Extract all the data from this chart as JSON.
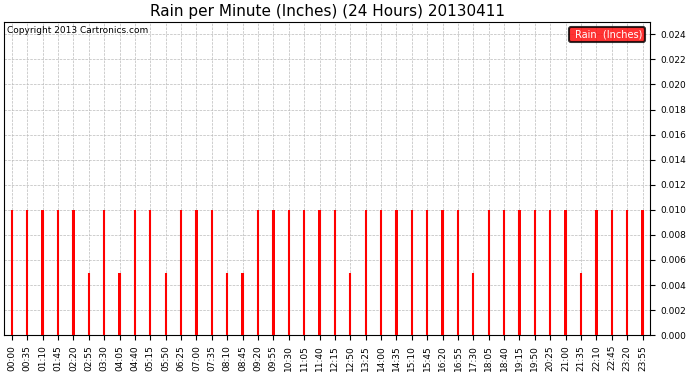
{
  "title": "Rain per Minute (Inches) (24 Hours) 20130411",
  "copyright": "Copyright 2013 Cartronics.com",
  "legend_label": "Rain  (Inches)",
  "ylim": [
    0,
    0.025
  ],
  "yticks": [
    0.0,
    0.002,
    0.004,
    0.006,
    0.008,
    0.01,
    0.012,
    0.014,
    0.016,
    0.018,
    0.02,
    0.022,
    0.024
  ],
  "bar_color": "#ff0000",
  "background_color": "#ffffff",
  "grid_color": "#bbbbbb",
  "title_fontsize": 11,
  "tick_fontsize": 6.5,
  "x_labels": [
    "00:00",
    "00:35",
    "01:10",
    "01:45",
    "02:20",
    "02:55",
    "03:30",
    "04:05",
    "04:40",
    "05:15",
    "05:50",
    "06:25",
    "07:00",
    "07:35",
    "08:10",
    "08:45",
    "09:20",
    "09:55",
    "10:30",
    "11:05",
    "11:40",
    "12:15",
    "12:50",
    "13:25",
    "14:00",
    "14:35",
    "15:10",
    "15:45",
    "16:20",
    "16:55",
    "17:30",
    "18:05",
    "18:40",
    "19:15",
    "19:50",
    "20:25",
    "21:00",
    "21:35",
    "22:10",
    "22:45",
    "23:20",
    "23:55"
  ],
  "rain_values": [
    0.01,
    0.01,
    0.01,
    0.01,
    0.01,
    0.005,
    0.01,
    0.005,
    0.01,
    0.01,
    0.005,
    0.01,
    0.01,
    0.01,
    0.005,
    0.005,
    0.01,
    0.01,
    0.01,
    0.01,
    0.01,
    0.01,
    0.005,
    0.01,
    0.01,
    0.01,
    0.01,
    0.01,
    0.01,
    0.01,
    0.005,
    0.01,
    0.01,
    0.01,
    0.01,
    0.01,
    0.01,
    0.005,
    0.01,
    0.01,
    0.01,
    0.01
  ]
}
